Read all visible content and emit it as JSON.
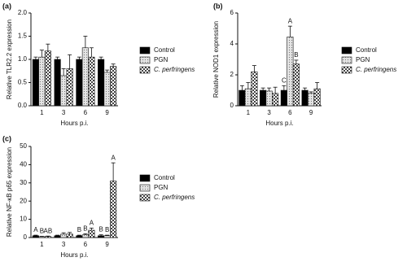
{
  "chart_data": [
    {
      "type": "bar",
      "panel": "(a)",
      "y_label": "Relative TLR2.2 expression",
      "x_label": "Hours p.i.",
      "categories": [
        "1",
        "3",
        "6",
        "9"
      ],
      "ylim": [
        0,
        2
      ],
      "yticks": [
        {
          "value": 0,
          "label": "0.0"
        },
        0.5,
        {
          "value": 1,
          "label": "1.0"
        },
        1.5,
        {
          "value": 2,
          "label": "2.0"
        }
      ],
      "series": [
        {
          "name": "Control",
          "color": "#000000",
          "pattern": "solid",
          "values": [
            1.0,
            1.0,
            1.0,
            1.0
          ],
          "errors": [
            0.05,
            0.05,
            0.05,
            0.05
          ]
        },
        {
          "name": "PGN",
          "color": "#d0d0d0",
          "pattern": "dotted",
          "values": [
            1.05,
            0.65,
            1.25,
            0.72
          ],
          "errors": [
            0.15,
            0.15,
            0.25,
            0.05
          ]
        },
        {
          "name": "C. perfringens",
          "color": "#555555",
          "pattern": "checkered",
          "values": [
            1.18,
            0.8,
            1.05,
            0.85
          ],
          "errors": [
            0.15,
            0.3,
            0.2,
            0.05
          ]
        }
      ]
    },
    {
      "type": "bar",
      "panel": "(b)",
      "y_label": "Relative NOD1 expression",
      "x_label": "Hours p.i.",
      "categories": [
        "1",
        "3",
        "6",
        "9"
      ],
      "ylim": [
        0,
        6
      ],
      "yticks": [
        0,
        2,
        4,
        6
      ],
      "series": [
        {
          "name": "Control",
          "color": "#000000",
          "pattern": "solid",
          "values": [
            1.0,
            1.0,
            1.0,
            1.0
          ],
          "errors": [
            0.3,
            0.15,
            0.3,
            0.15
          ],
          "letters": [
            null,
            null,
            "C",
            null
          ]
        },
        {
          "name": "PGN",
          "color": "#d0d0d0",
          "pattern": "dotted",
          "values": [
            1.1,
            0.95,
            4.45,
            0.8
          ],
          "errors": [
            0.4,
            0.2,
            0.7,
            0.1
          ],
          "letters": [
            null,
            null,
            "A",
            null
          ]
        },
        {
          "name": "C. perfringens",
          "color": "#555555",
          "pattern": "checkered",
          "values": [
            2.2,
            0.8,
            2.7,
            1.1
          ],
          "errors": [
            0.4,
            0.4,
            0.25,
            0.4
          ],
          "letters": [
            null,
            null,
            "B",
            null
          ]
        }
      ]
    },
    {
      "type": "bar",
      "panel": "(c)",
      "y_label": "Relative NF-κB p65 expression",
      "x_label": "Hours p.i.",
      "categories": [
        "1",
        "3",
        "6",
        "9"
      ],
      "ylim": [
        0,
        50
      ],
      "yticks": [
        0,
        10,
        20,
        30,
        40,
        50
      ],
      "series": [
        {
          "name": "Control",
          "color": "#000000",
          "pattern": "solid",
          "values": [
            1.0,
            1.0,
            1.0,
            1.0
          ],
          "errors": [
            0.3,
            0.3,
            0.3,
            0.5
          ],
          "letters": [
            "A",
            null,
            "B",
            "B"
          ]
        },
        {
          "name": "PGN",
          "color": "#d0d0d0",
          "pattern": "dotted",
          "values": [
            0.5,
            1.8,
            1.5,
            1.0
          ],
          "errors": [
            0.2,
            0.8,
            0.6,
            0.3
          ],
          "letters": [
            "B",
            null,
            "B",
            "B"
          ]
        },
        {
          "name": "C. perfringens",
          "color": "#555555",
          "pattern": "checkered",
          "values": [
            0.6,
            1.9,
            4.0,
            31.0
          ],
          "errors": [
            0.2,
            0.9,
            1.2,
            10.0
          ],
          "letters": [
            "AB",
            null,
            "A",
            "A"
          ]
        }
      ]
    }
  ]
}
